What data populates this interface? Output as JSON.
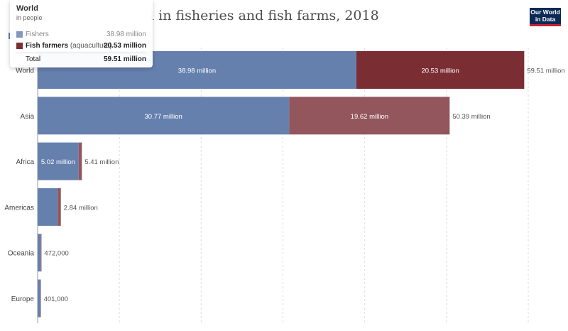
{
  "header": {
    "title_visible": "l in fisheries and fish farms, 2018",
    "logo_line1": "Our World",
    "logo_line2": "in Data"
  },
  "tooltip": {
    "title": "World",
    "subtitle": "in people",
    "rows": [
      {
        "label": "Fishers",
        "value": "38.98 million"
      },
      {
        "label": "Fish farmers",
        "label_suffix": "(aquaculture)",
        "value": "20.53 million"
      }
    ],
    "total_label": "Total",
    "total_value": "59.51 million"
  },
  "colors": {
    "fishers": "#6680ae",
    "fish_farmers": "#93565d",
    "fish_farmers_highlight": "#7b2d34",
    "tooltip_fishers": "#8396bf"
  },
  "chart_data": {
    "type": "bar",
    "orientation": "horizontal",
    "stacked": true,
    "unit": "people",
    "categories": [
      "World",
      "Asia",
      "Africa",
      "Americas",
      "Oceania",
      "Europe"
    ],
    "series": [
      {
        "name": "Fishers",
        "values": [
          38980000,
          30770000,
          5020000,
          2450000,
          420000,
          360000
        ]
      },
      {
        "name": "Fish farmers (aquaculture)",
        "values": [
          20530000,
          19620000,
          390000,
          390000,
          52000,
          41000
        ]
      }
    ],
    "segment_labels": [
      [
        "38.98 million",
        "20.53 million"
      ],
      [
        "30.77 million",
        "19.62 million"
      ],
      [
        "5.02 million",
        ""
      ],
      [
        "",
        ""
      ],
      [
        "",
        ""
      ],
      [
        "",
        ""
      ]
    ],
    "total_labels": [
      "59.51 million",
      "50.39 million",
      "5.41 million",
      "2.84 million",
      "472,000",
      "401,000"
    ],
    "highlighted_category": "World",
    "xlim": [
      0,
      60000000
    ],
    "grid": "vertical-dashed",
    "legend": "top-left"
  }
}
